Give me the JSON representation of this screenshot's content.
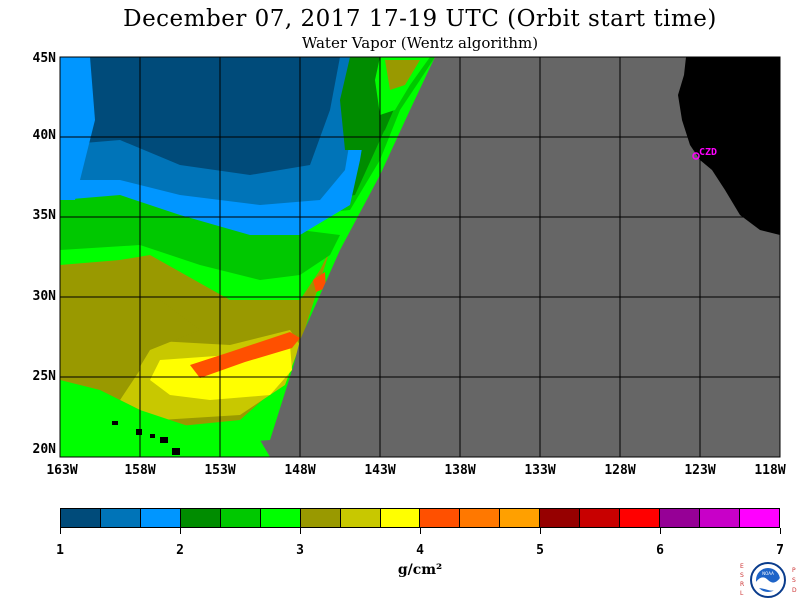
{
  "header": {
    "title": "December 07, 2017  17-19 UTC  (Orbit start time)",
    "subtitle": "Water Vapor (Wentz algorithm)"
  },
  "map": {
    "lat_labels": [
      "45N",
      "40N",
      "35N",
      "30N",
      "25N",
      "20N"
    ],
    "lon_labels": [
      "163W",
      "158W",
      "153W",
      "148W",
      "143W",
      "138W",
      "133W",
      "128W",
      "123W",
      "118W"
    ],
    "lat_range": [
      20,
      45
    ],
    "lon_range": [
      -163,
      -118
    ],
    "station_label": "CZD",
    "colors": {
      "no_data": "#666666",
      "land": "#000000",
      "grid": "#000000"
    }
  },
  "colorbar": {
    "tick_labels": [
      "1",
      "2",
      "3",
      "4",
      "5",
      "6",
      "7"
    ],
    "units": "g/cm²",
    "colors": [
      "#004b7a",
      "#0074b8",
      "#0096ff",
      "#008c00",
      "#00c800",
      "#00ff00",
      "#999900",
      "#c8c800",
      "#ffff00",
      "#ff5000",
      "#ff7800",
      "#ffa000",
      "#960000",
      "#c80000",
      "#ff0000",
      "#960096",
      "#c800c8",
      "#ff00ff"
    ]
  },
  "logo": {
    "left_letters": "ESRL",
    "right_letters": "PSD",
    "name": "NOAA"
  }
}
